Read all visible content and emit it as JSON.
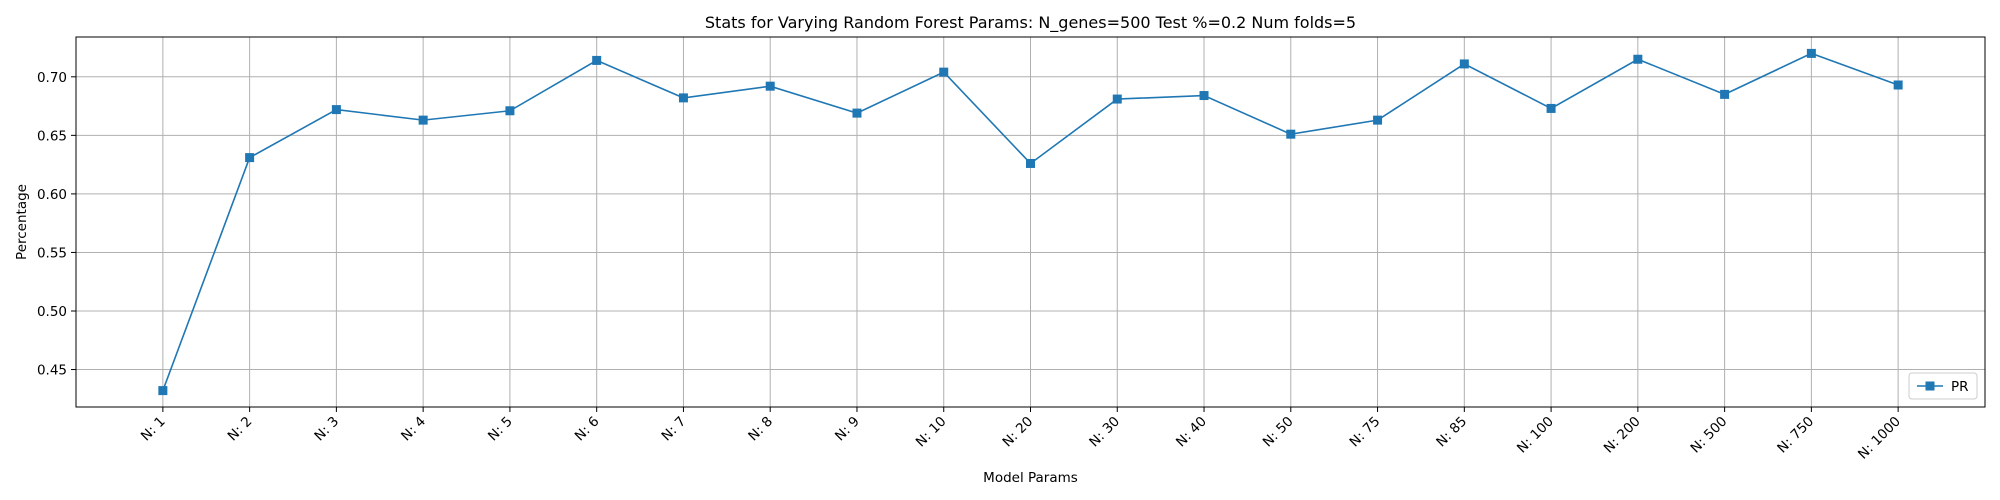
{
  "chart_data": {
    "type": "line",
    "title": "Stats for Varying Random Forest Params: N_genes=500 Test %=0.2 Num folds=5",
    "xlabel": "Model Params",
    "ylabel": "Percentage",
    "categories": [
      "N: 1",
      "N: 2",
      "N: 3",
      "N: 4",
      "N: 5",
      "N: 6",
      "N: 7",
      "N: 8",
      "N: 9",
      "N: 10",
      "N: 20",
      "N: 30",
      "N: 40",
      "N: 50",
      "N: 75",
      "N: 85",
      "N: 100",
      "N: 200",
      "N: 500",
      "N: 750",
      "N: 1000"
    ],
    "series": [
      {
        "name": "PR",
        "color": "#1f77b4",
        "marker": "square",
        "values": [
          0.432,
          0.631,
          0.672,
          0.663,
          0.671,
          0.714,
          0.682,
          0.692,
          0.669,
          0.704,
          0.626,
          0.681,
          0.684,
          0.651,
          0.663,
          0.711,
          0.673,
          0.715,
          0.685,
          0.72,
          0.693
        ]
      }
    ],
    "ylim": [
      0.418,
      0.734
    ],
    "yticks": [
      0.45,
      0.5,
      0.55,
      0.6,
      0.65,
      0.7
    ],
    "ytick_labels": [
      "0.45",
      "0.50",
      "0.55",
      "0.60",
      "0.65",
      "0.70"
    ],
    "grid": true,
    "legend_position": "lower-right"
  }
}
